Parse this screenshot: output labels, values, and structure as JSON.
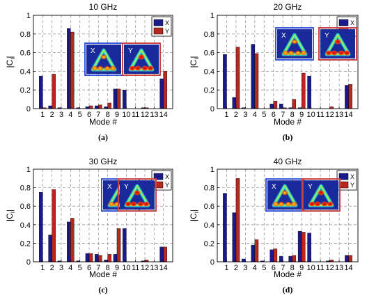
{
  "colors": {
    "x_series": "#1a1a8c",
    "y_series": "#b8281f",
    "grid": "#9a9a9a",
    "inset_bg": "#1a2a9a"
  },
  "chart_data": [
    {
      "type": "bar",
      "title": "10 GHz",
      "panel_label": "(a)",
      "xlabel": "Mode #",
      "ylabel": "|C",
      "ylabel_sub": "i",
      "ylabel_end": "|",
      "ylim": [
        0,
        1
      ],
      "yticks": [
        "0",
        "0.2",
        "0.4",
        "0.6",
        "0.8",
        "1"
      ],
      "categories": [
        "1",
        "2",
        "3",
        "4",
        "5",
        "6",
        "7",
        "8",
        "9",
        "10",
        "11",
        "12",
        "13",
        "14"
      ],
      "grid": true,
      "legend": "top-right",
      "inset_labels": [
        "X",
        "Y"
      ],
      "series": [
        {
          "name": "X",
          "values": [
            0.35,
            0.03,
            0.01,
            0.86,
            0.01,
            0.02,
            0.03,
            0.02,
            0.21,
            0.2,
            0.0,
            0.01,
            0.0,
            0.32
          ]
        },
        {
          "name": "Y",
          "values": [
            0.01,
            0.37,
            0.0,
            0.82,
            0.0,
            0.03,
            0.04,
            0.06,
            0.21,
            0.0,
            0.0,
            0.01,
            0.0,
            0.4
          ]
        }
      ]
    },
    {
      "type": "bar",
      "title": "20 GHz",
      "panel_label": "(b)",
      "xlabel": "Mode #",
      "ylabel": "|C",
      "ylabel_sub": "i",
      "ylabel_end": "|",
      "ylim": [
        0,
        1
      ],
      "yticks": [
        "0",
        "0.2",
        "0.4",
        "0.6",
        "0.8",
        "1"
      ],
      "categories": [
        "1",
        "2",
        "3",
        "4",
        "5",
        "6",
        "7",
        "8",
        "9",
        "10",
        "11",
        "12",
        "13",
        "14"
      ],
      "grid": true,
      "legend": "top-right",
      "inset_labels": [
        "X",
        "Y"
      ],
      "series": [
        {
          "name": "X",
          "values": [
            0.58,
            0.12,
            0.01,
            0.69,
            0.0,
            0.05,
            0.05,
            0.01,
            0.01,
            0.35,
            0.0,
            0.0,
            0.0,
            0.25
          ]
        },
        {
          "name": "Y",
          "values": [
            0.0,
            0.66,
            0.0,
            0.59,
            0.0,
            0.08,
            0.01,
            0.1,
            0.38,
            0.0,
            0.0,
            0.02,
            0.0,
            0.26
          ]
        }
      ]
    },
    {
      "type": "bar",
      "title": "30 GHz",
      "panel_label": "(c)",
      "xlabel": "Mode #",
      "ylabel": "|C",
      "ylabel_sub": "i",
      "ylabel_end": "|",
      "ylim": [
        0,
        1
      ],
      "yticks": [
        "0",
        "0.2",
        "0.4",
        "0.6",
        "0.8",
        "1"
      ],
      "categories": [
        "1",
        "2",
        "3",
        "4",
        "5",
        "6",
        "7",
        "8",
        "9",
        "10",
        "11",
        "12",
        "13",
        "14"
      ],
      "grid": true,
      "legend": "top-right",
      "inset_labels": [
        "X",
        "Y"
      ],
      "series": [
        {
          "name": "X",
          "values": [
            0.75,
            0.29,
            0.01,
            0.43,
            0.01,
            0.09,
            0.08,
            0.02,
            0.08,
            0.36,
            0.0,
            0.01,
            0.0,
            0.16
          ]
        },
        {
          "name": "Y",
          "values": [
            0.0,
            0.78,
            0.0,
            0.47,
            0.0,
            0.09,
            0.07,
            0.08,
            0.36,
            0.0,
            0.0,
            0.02,
            0.0,
            0.16
          ]
        }
      ]
    },
    {
      "type": "bar",
      "title": "40 GHz",
      "panel_label": "(d)",
      "xlabel": "Mode #",
      "ylabel": "|C",
      "ylabel_sub": "i",
      "ylabel_end": "|",
      "ylim": [
        0,
        1
      ],
      "yticks": [
        "0",
        "0.2",
        "0.4",
        "0.6",
        "0.8",
        "1"
      ],
      "categories": [
        "1",
        "2",
        "3",
        "4",
        "5",
        "6",
        "7",
        "8",
        "9",
        "10",
        "11",
        "12",
        "13",
        "14"
      ],
      "grid": true,
      "legend": "top-right",
      "inset_labels": [
        "X",
        "Y"
      ],
      "series": [
        {
          "name": "X",
          "values": [
            0.74,
            0.53,
            0.03,
            0.18,
            0.01,
            0.13,
            0.06,
            0.06,
            0.33,
            0.31,
            0.0,
            0.01,
            0.0,
            0.07
          ]
        },
        {
          "name": "Y",
          "values": [
            0.0,
            0.9,
            0.0,
            0.24,
            0.0,
            0.14,
            0.0,
            0.07,
            0.32,
            0.0,
            0.0,
            0.02,
            0.0,
            0.07
          ]
        }
      ]
    }
  ]
}
